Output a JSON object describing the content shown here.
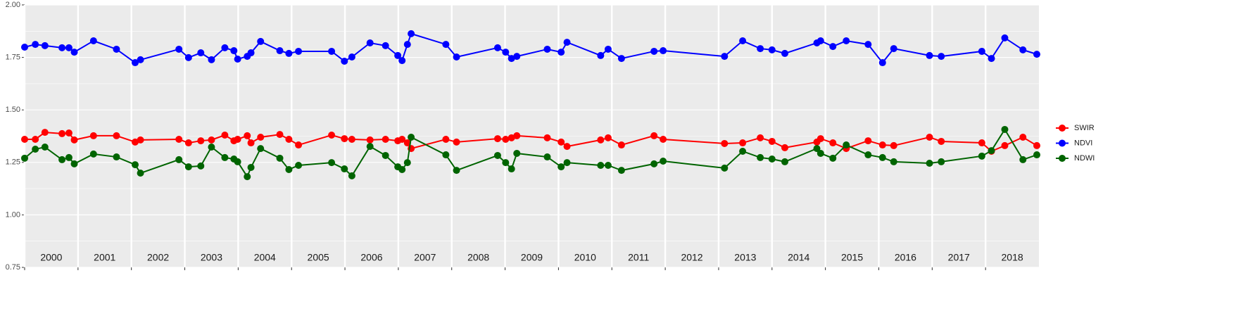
{
  "chart_data": {
    "type": "line",
    "x": [
      2000.0,
      2000.2,
      2000.38,
      2000.7,
      2000.83,
      2000.93,
      2001.29,
      2001.72,
      2002.07,
      2002.17,
      2002.89,
      2003.07,
      2003.3,
      2003.5,
      2003.75,
      2003.92,
      2003.99,
      2004.17,
      2004.24,
      2004.42,
      2004.78,
      2004.95,
      2005.13,
      2005.75,
      2005.99,
      2006.13,
      2006.47,
      2006.76,
      2006.99,
      2007.07,
      2007.17,
      2007.24,
      2007.89,
      2008.09,
      2008.86,
      2009.01,
      2009.12,
      2009.22,
      2009.79,
      2010.05,
      2010.16,
      2010.79,
      2010.93,
      2011.18,
      2011.79,
      2011.96,
      2013.11,
      2013.45,
      2013.78,
      2014.0,
      2014.24,
      2014.84,
      2014.91,
      2015.14,
      2015.39,
      2015.8,
      2016.07,
      2016.28,
      2016.95,
      2017.17,
      2017.93,
      2018.11,
      2018.36,
      2018.7,
      2018.96
    ],
    "series": [
      {
        "name": "SWIR",
        "color": "#ff0000",
        "values": [
          1.36,
          1.36,
          1.393,
          1.387,
          1.39,
          1.357,
          1.377,
          1.377,
          1.347,
          1.357,
          1.36,
          1.343,
          1.353,
          1.357,
          1.38,
          1.353,
          1.36,
          1.377,
          1.343,
          1.37,
          1.383,
          1.36,
          1.333,
          1.38,
          1.363,
          1.36,
          1.357,
          1.36,
          1.353,
          1.36,
          1.343,
          1.316,
          1.36,
          1.347,
          1.363,
          1.36,
          1.367,
          1.377,
          1.367,
          1.347,
          1.326,
          1.357,
          1.367,
          1.333,
          1.377,
          1.36,
          1.34,
          1.343,
          1.367,
          1.35,
          1.32,
          1.347,
          1.363,
          1.343,
          1.316,
          1.353,
          1.333,
          1.33,
          1.37,
          1.35,
          1.343,
          1.303,
          1.33,
          1.37,
          1.33
        ]
      },
      {
        "name": "NDVI",
        "color": "#0000ff",
        "values": [
          1.799,
          1.812,
          1.806,
          1.796,
          1.796,
          1.775,
          1.829,
          1.789,
          1.725,
          1.739,
          1.789,
          1.749,
          1.772,
          1.739,
          1.796,
          1.782,
          1.742,
          1.755,
          1.772,
          1.826,
          1.782,
          1.769,
          1.779,
          1.779,
          1.732,
          1.752,
          1.819,
          1.806,
          1.759,
          1.735,
          1.812,
          1.863,
          1.812,
          1.752,
          1.796,
          1.775,
          1.745,
          1.755,
          1.789,
          1.775,
          1.822,
          1.759,
          1.789,
          1.745,
          1.779,
          1.782,
          1.755,
          1.829,
          1.792,
          1.786,
          1.769,
          1.819,
          1.829,
          1.802,
          1.829,
          1.812,
          1.725,
          1.792,
          1.759,
          1.755,
          1.779,
          1.745,
          1.843,
          1.786,
          1.765
        ]
      },
      {
        "name": "NDWI",
        "color": "#006400",
        "values": [
          1.27,
          1.313,
          1.323,
          1.263,
          1.273,
          1.243,
          1.29,
          1.276,
          1.239,
          1.199,
          1.263,
          1.229,
          1.233,
          1.323,
          1.273,
          1.266,
          1.253,
          1.182,
          1.226,
          1.316,
          1.27,
          1.216,
          1.236,
          1.249,
          1.219,
          1.186,
          1.326,
          1.283,
          1.229,
          1.216,
          1.249,
          1.37,
          1.286,
          1.212,
          1.283,
          1.249,
          1.219,
          1.293,
          1.276,
          1.229,
          1.249,
          1.236,
          1.236,
          1.212,
          1.243,
          1.256,
          1.223,
          1.303,
          1.273,
          1.266,
          1.253,
          1.316,
          1.293,
          1.27,
          1.333,
          1.286,
          1.273,
          1.253,
          1.246,
          1.253,
          1.28,
          1.306,
          1.407,
          1.263,
          1.286
        ]
      }
    ],
    "xlim": [
      2000,
      2019
    ],
    "xticks": [
      2000,
      2001,
      2002,
      2003,
      2004,
      2005,
      2006,
      2007,
      2008,
      2009,
      2010,
      2011,
      2012,
      2013,
      2014,
      2015,
      2016,
      2017,
      2018
    ],
    "ylim": [
      0.75,
      2.0
    ],
    "yticks": [
      0.75,
      {
        "value": 1.0,
        "label": "1.00"
      },
      1.25,
      {
        "value": 1.5,
        "label": "1.50"
      },
      1.75,
      {
        "value": 2.0,
        "label": "2.00"
      }
    ],
    "grid": true,
    "legend": "right"
  }
}
